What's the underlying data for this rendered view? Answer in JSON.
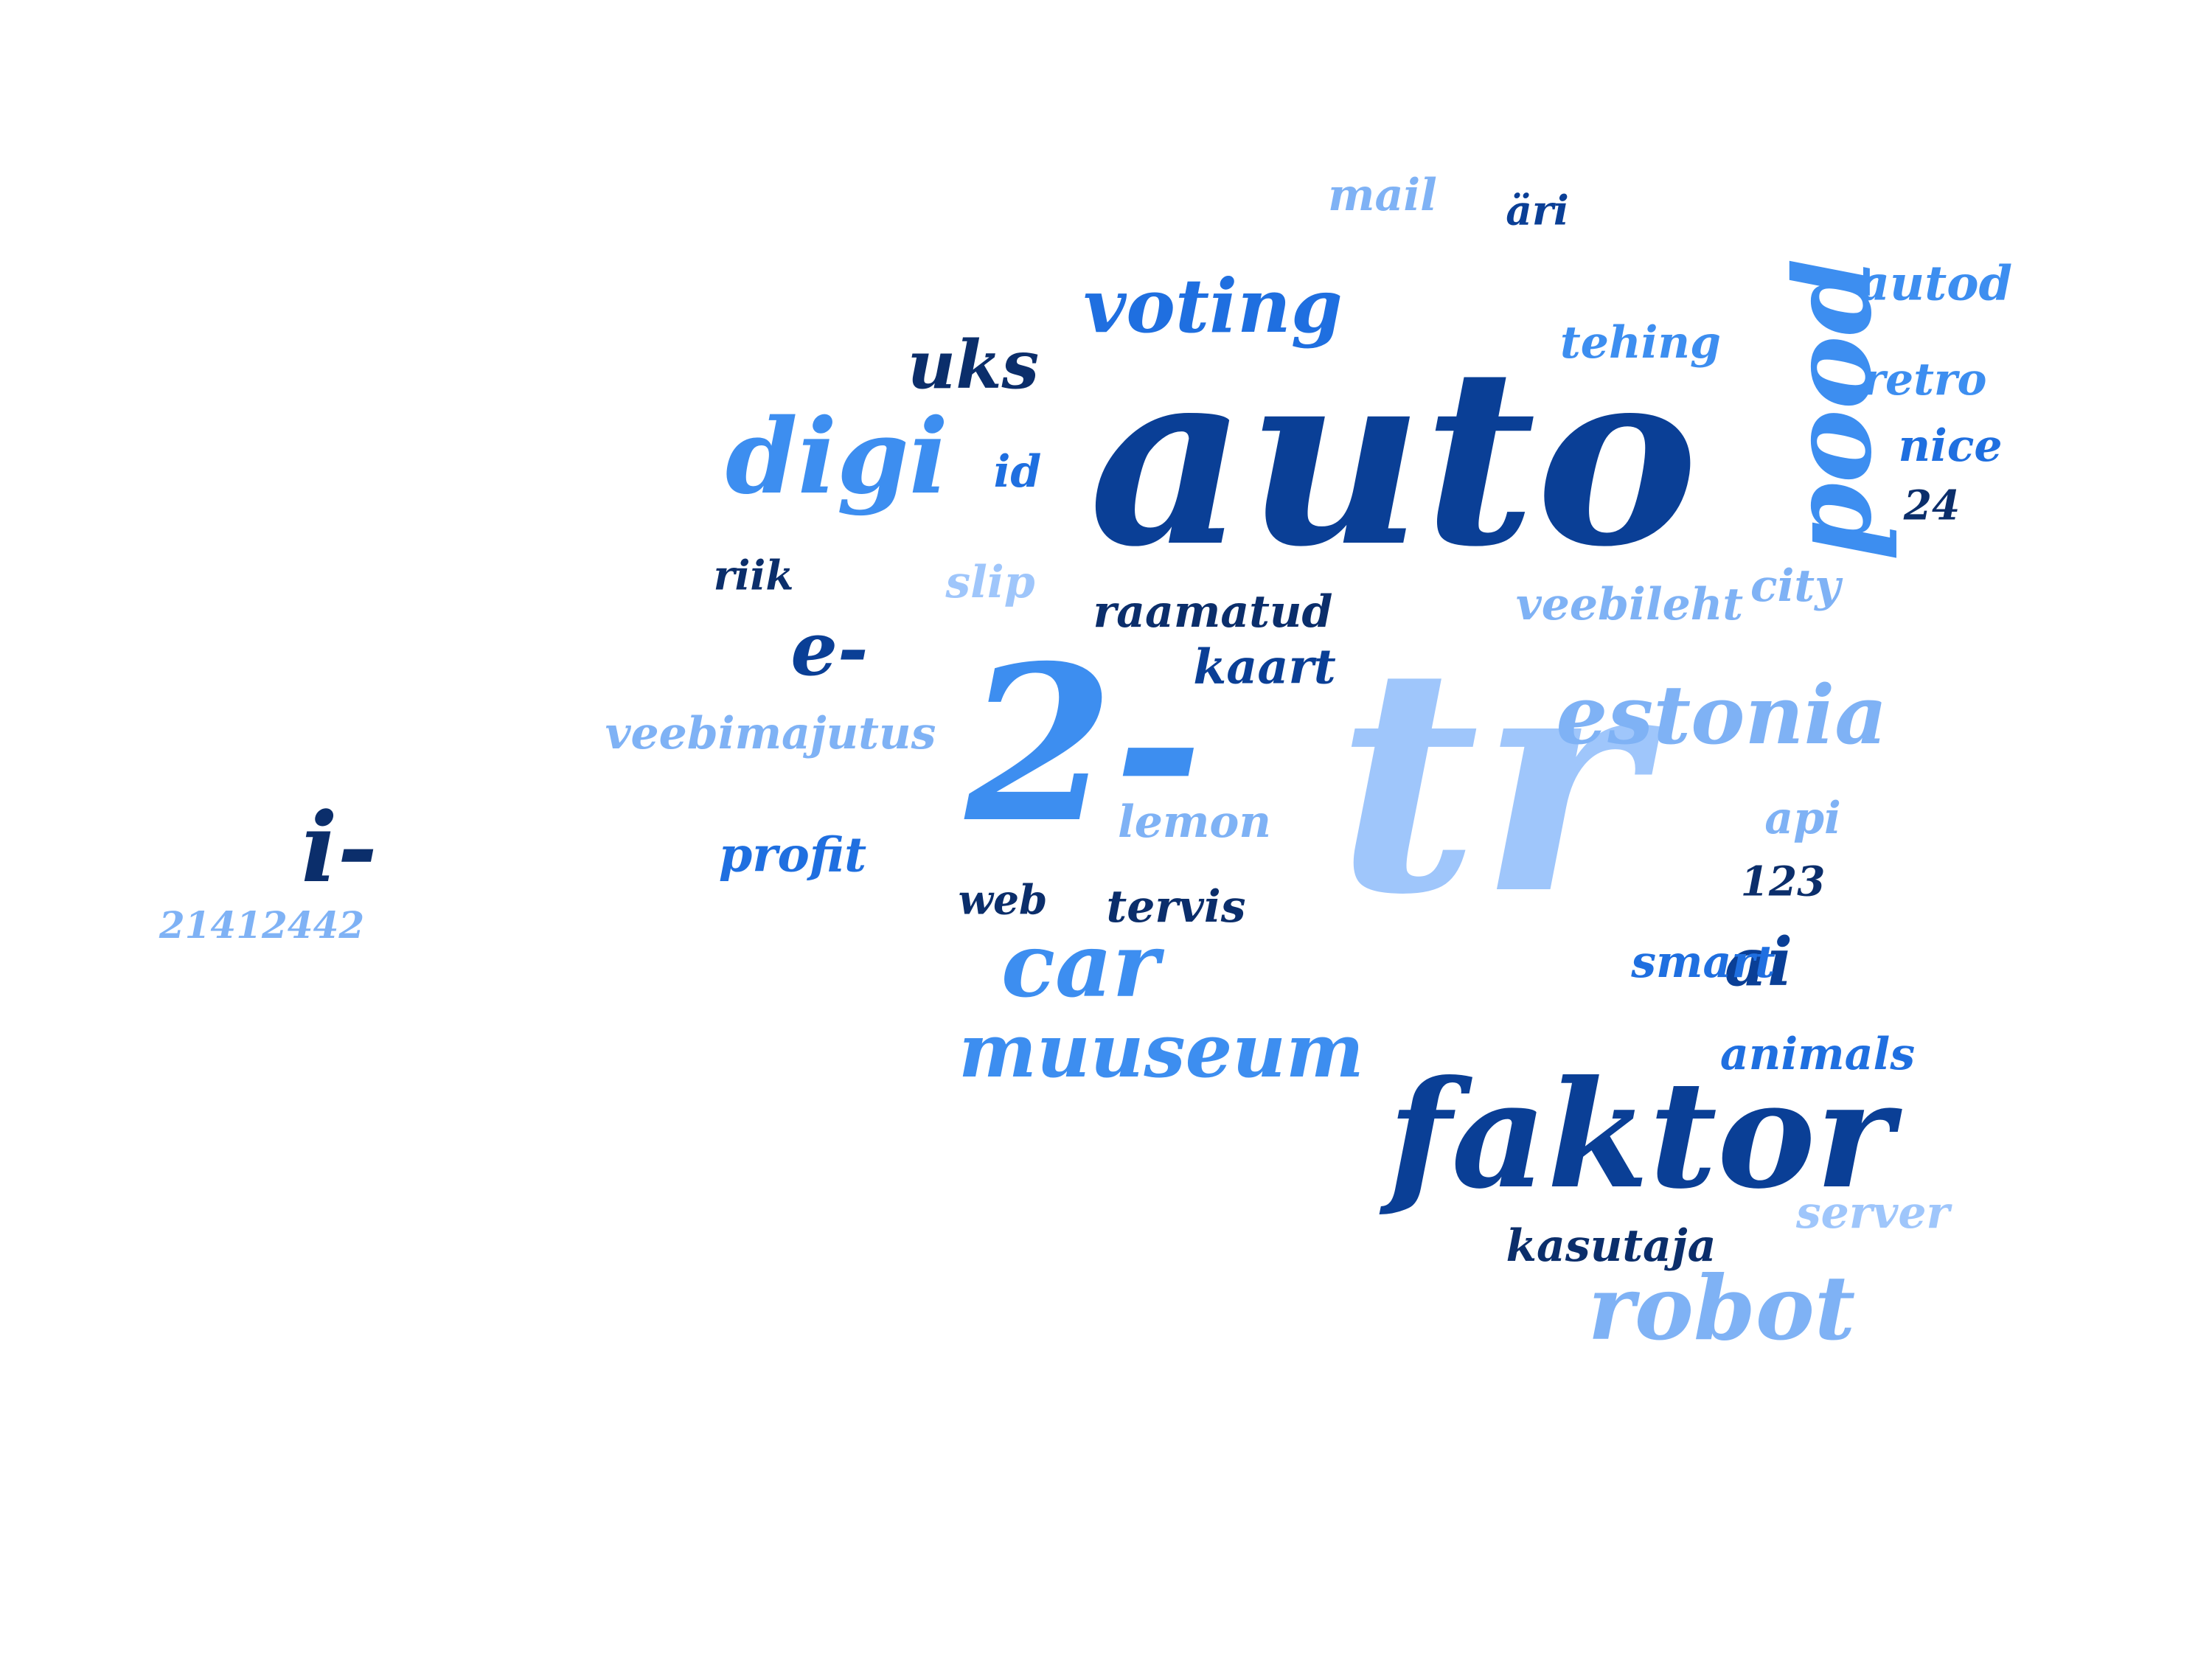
{
  "palette": {
    "navy": "#0b2e6b",
    "dark_blue": "#0a3f96",
    "blue": "#1f6fe0",
    "mid_blue": "#3d8ef0",
    "light_blue": "#7fb2f5",
    "pale_blue": "#9fc6fb"
  },
  "words": [
    {
      "text": "auto",
      "color": "dark_blue"
    },
    {
      "text": "tr",
      "color": "pale_blue"
    },
    {
      "text": "2-",
      "color": "mid_blue"
    },
    {
      "text": "faktor",
      "color": "dark_blue"
    },
    {
      "text": "pood",
      "color": "mid_blue"
    },
    {
      "text": "digi",
      "color": "mid_blue"
    },
    {
      "text": "voting",
      "color": "blue"
    },
    {
      "text": "estonia",
      "color": "light_blue"
    },
    {
      "text": "robot",
      "color": "light_blue"
    },
    {
      "text": "muuseum",
      "color": "mid_blue"
    },
    {
      "text": "car",
      "color": "mid_blue"
    },
    {
      "text": "uks",
      "color": "navy"
    },
    {
      "text": "e-",
      "color": "dark_blue"
    },
    {
      "text": "ai",
      "color": "dark_blue"
    },
    {
      "text": "mail",
      "color": "light_blue"
    },
    {
      "text": "äri",
      "color": "dark_blue"
    },
    {
      "text": "autod",
      "color": "mid_blue"
    },
    {
      "text": "tehing",
      "color": "mid_blue"
    },
    {
      "text": "retro",
      "color": "mid_blue"
    },
    {
      "text": "nice",
      "color": "blue"
    },
    {
      "text": "24",
      "color": "navy"
    },
    {
      "text": "id",
      "color": "blue"
    },
    {
      "text": "riik",
      "color": "navy"
    },
    {
      "text": "slip",
      "color": "pale_blue"
    },
    {
      "text": "city",
      "color": "light_blue"
    },
    {
      "text": "raamatud",
      "color": "navy"
    },
    {
      "text": "veebileht",
      "color": "light_blue"
    },
    {
      "text": "kaart",
      "color": "dark_blue"
    },
    {
      "text": "veebimajutus",
      "color": "light_blue"
    },
    {
      "text": "lemon",
      "color": "light_blue"
    },
    {
      "text": "api",
      "color": "light_blue"
    },
    {
      "text": "profit",
      "color": "blue"
    },
    {
      "text": "123",
      "color": "navy"
    },
    {
      "text": "web",
      "color": "navy"
    },
    {
      "text": "tervis",
      "color": "navy"
    },
    {
      "text": "smart",
      "color": "blue"
    },
    {
      "text": "animals",
      "color": "blue"
    },
    {
      "text": "server",
      "color": "pale_blue"
    },
    {
      "text": "kasutaja",
      "color": "navy"
    },
    {
      "text": "i-",
      "color": "navy"
    },
    {
      "text": "21412442",
      "color": "light_blue"
    }
  ]
}
